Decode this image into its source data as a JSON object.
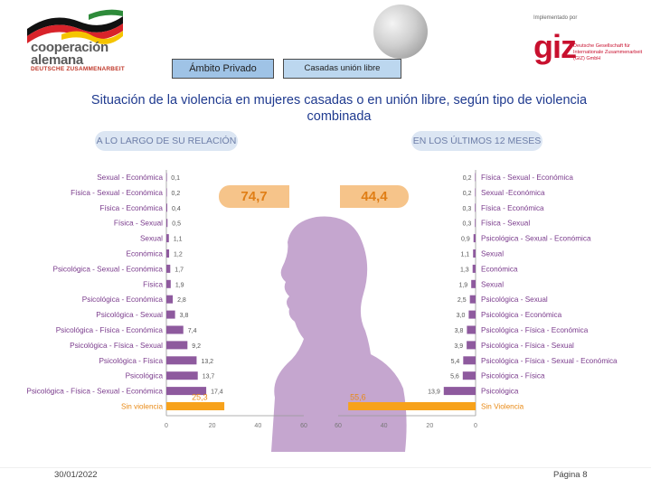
{
  "header": {
    "logo_line1": "cooperación",
    "logo_line2": "alemana",
    "logo_line3": "DEUTSCHE ZUSAMMENARBEIT",
    "implemented_by": "Implementado por",
    "giz_logo": "giz",
    "giz_subtitle": "Deutsche Gesellschaft für Internationale Zusammenarbeit (GIZ) GmbH"
  },
  "tabs": [
    {
      "label": "Ámbito Privado"
    },
    {
      "label": "Casadas  unión libre"
    }
  ],
  "title": "Situación de la violencia en mujeres casadas o en unión libre, según tipo de violencia combinada",
  "panels": {
    "left_label": "A LO LARGO DE SU RELACIÓN",
    "right_label": "EN LOS ÚLTIMOS 12 MESES",
    "left_total": "74,7",
    "right_total": "44,4"
  },
  "colors": {
    "bar_purple": "#8e5a9e",
    "bar_orange": "#f7a21b",
    "label_purple": "#7a3b8c",
    "label_orange": "#e98a15",
    "silhouette": "#c5a6cf"
  },
  "chart_data": [
    {
      "type": "bar",
      "orientation": "horizontal",
      "title": "A LO LARGO DE SU RELACIÓN",
      "categories": [
        "Sexual - Económica",
        "Física - Sexual - Económica",
        "Física - Económica",
        "Física - Sexual",
        "Sexual",
        "Económica",
        "Psicológica - Sexual - Económica",
        "Física",
        "Psicológica - Económica",
        "Psicológica - Sexual",
        "Psicológica - Física - Económica",
        "Psicológica - Física - Sexual",
        "Psicológica - Física",
        "Psicológica",
        "Psicológica - Física - Sexual - Económica",
        "Sin violencia"
      ],
      "values": [
        0.1,
        0.2,
        0.4,
        0.5,
        1.1,
        1.2,
        1.7,
        1.9,
        2.8,
        3.8,
        7.4,
        9.2,
        13.2,
        13.7,
        17.4,
        25.3
      ],
      "value_labels": [
        "0,1",
        "0,2",
        "0,4",
        "0,5",
        "1,1",
        "1,2",
        "1,7",
        "1,9",
        "2,8",
        "3,8",
        "7,4",
        "9,2",
        "13,2",
        "13,7",
        "17,4",
        "25,3"
      ],
      "xlim": [
        0,
        60
      ],
      "xticks": [
        "0",
        "20",
        "40",
        "60"
      ],
      "highlight_category": "Sin violencia"
    },
    {
      "type": "bar",
      "orientation": "horizontal",
      "title": "EN LOS ÚLTIMOS 12 MESES",
      "categories": [
        "Física - Sexual - Económica",
        "Sexual -Económica",
        "Física - Económica",
        "Física - Sexual",
        "Psicológica - Sexual - Económica",
        "Sexual",
        "Económica",
        "Sexual",
        "Psicológica - Sexual",
        "Psicológica - Económica",
        "Psicológica - Física - Económica",
        "Psicológica - Física - Sexual",
        "Psicológica - Física - Sexual - Económica",
        "Psicológica - Física",
        "Psicológica",
        "Sin Violencia"
      ],
      "values": [
        0.2,
        0.2,
        0.3,
        0.3,
        0.9,
        1.1,
        1.3,
        1.9,
        2.5,
        3.0,
        3.8,
        3.9,
        5.4,
        5.6,
        13.9,
        55.6
      ],
      "value_labels": [
        "0,2",
        "0,2",
        "0,3",
        "0,3",
        "0,9",
        "1,1",
        "1,3",
        "1,9",
        "2,5",
        "3,0",
        "3,8",
        "3,9",
        "5,4",
        "5,6",
        "13,9",
        "55,6"
      ],
      "xlim": [
        0,
        60
      ],
      "xticks": [
        "60",
        "40",
        "20",
        "0"
      ],
      "highlight_category": "Sin Violencia"
    }
  ],
  "footer": {
    "date": "30/01/2022",
    "page": "Página 8"
  }
}
